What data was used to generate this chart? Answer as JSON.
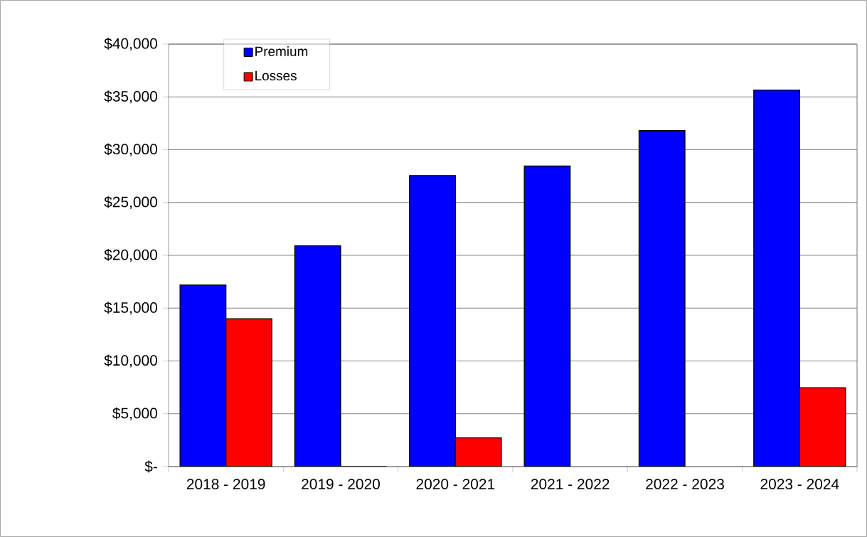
{
  "chart_data": {
    "type": "bar",
    "categories": [
      "2018 - 2019",
      "2019 - 2020",
      "2020 - 2021",
      "2021 - 2022",
      "2022 - 2023",
      "2023 - 2024"
    ],
    "series": [
      {
        "name": "Premium",
        "color": "#0000ff",
        "values": [
          17200,
          20900,
          27550,
          28450,
          31800,
          35650
        ]
      },
      {
        "name": "Losses",
        "color": "#ff0000",
        "values": [
          14000,
          0,
          2720,
          null,
          null,
          7470
        ]
      }
    ],
    "ylim": [
      0,
      40000
    ],
    "yticks": [
      {
        "value": 0,
        "label": "$-"
      },
      {
        "value": 5000,
        "label": "$5,000"
      },
      {
        "value": 10000,
        "label": "$10,000"
      },
      {
        "value": 15000,
        "label": "$15,000"
      },
      {
        "value": 20000,
        "label": "$20,000"
      },
      {
        "value": 25000,
        "label": "$25,000"
      },
      {
        "value": 30000,
        "label": "$30,000"
      },
      {
        "value": 35000,
        "label": "$35,000"
      },
      {
        "value": 40000,
        "label": "$40,000"
      }
    ],
    "grid": "y",
    "legend": "top left"
  }
}
